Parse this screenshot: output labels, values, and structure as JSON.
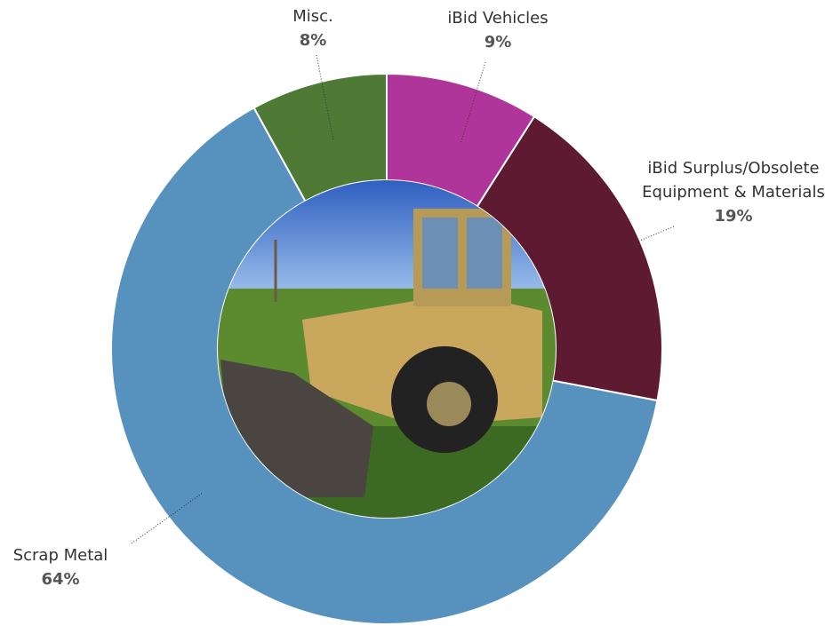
{
  "chart_data": {
    "type": "donut",
    "categories": [
      "iBid Vehicles",
      "iBid Surplus/Obsolete Equipment & Materials",
      "Scrap Metal",
      "Misc."
    ],
    "values": [
      9,
      19,
      64,
      8
    ],
    "value_labels": [
      "9%",
      "19%",
      "64%",
      "8%"
    ],
    "colors": [
      "#b0359a",
      "#5d1a30",
      "#5792bf",
      "#4e7a36"
    ]
  }
}
